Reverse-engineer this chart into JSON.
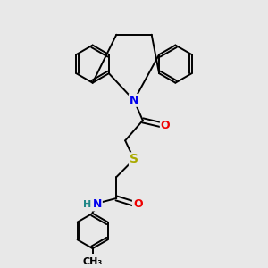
{
  "bg_color": "#e8e8e8",
  "atom_colors": {
    "N": "#0000ee",
    "O": "#ee0000",
    "S": "#aaaa00",
    "C": "#000000",
    "H": "#228888"
  },
  "bond_color": "#000000",
  "bond_width": 1.4,
  "fig_size": [
    3.0,
    3.0
  ],
  "dpi": 100
}
